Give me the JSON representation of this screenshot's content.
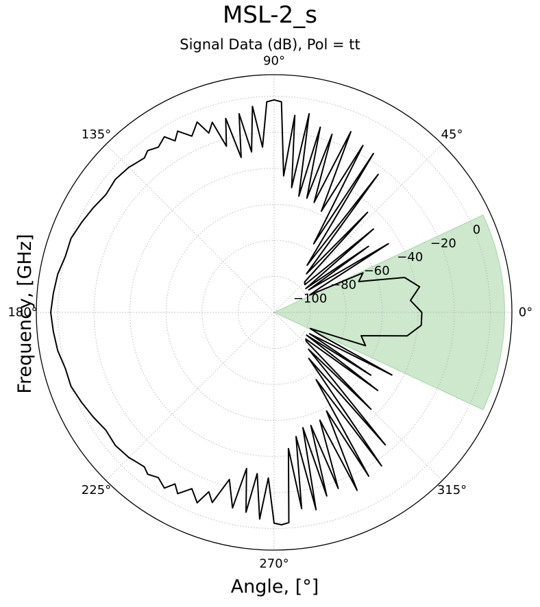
{
  "header": {
    "suptitle": "MSL-2_s",
    "subtitle": "Signal Data (dB), Pol = tt"
  },
  "chart_data": {
    "type": "polar-line",
    "title": "Signal Data (dB), Pol = tt",
    "xlabel": "Angle, [$^{\\circ}$]",
    "xlabel_display": "Angle, [°]",
    "ylabel": "Frequency, [GHz]",
    "ylabel_display": "Frequency, [GHz]",
    "angle_ticks": [
      0,
      45,
      90,
      135,
      180,
      225,
      270,
      315
    ],
    "angle_tick_labels": [
      "0°",
      "45°",
      "90°",
      "135°",
      "180°",
      "225°",
      "270°",
      "315°"
    ],
    "radial_ticks": [
      -100,
      -80,
      -60,
      -40,
      -20,
      0
    ],
    "radial_tick_labels": [
      "−100",
      "−80",
      "−60",
      "−40",
      "−20",
      "0"
    ],
    "rlim": [
      -120,
      12
    ],
    "radial_label_angle_deg": 22.5,
    "grid": true,
    "highlight_sector": {
      "theta_start_deg": -25,
      "theta_end_deg": 25,
      "r_max_dB": 8,
      "color": "#2ca02c",
      "alpha": 0.24
    },
    "series": [
      {
        "color": "#000000",
        "theta_deg": [
          0,
          5,
          10,
          15,
          20,
          24,
          26,
          28,
          31,
          33,
          35,
          37,
          40,
          42,
          45,
          47,
          50,
          53,
          55,
          58,
          60,
          62,
          65,
          67,
          70,
          72,
          74,
          76,
          78,
          80,
          82,
          84,
          86,
          88,
          90,
          92,
          94,
          96,
          98,
          100,
          102,
          104,
          106,
          108,
          110,
          112,
          115,
          118,
          120,
          122,
          125,
          128,
          130,
          133,
          135,
          140,
          145,
          150,
          155,
          160,
          165,
          170,
          175,
          180,
          185,
          190,
          195,
          200,
          205,
          210,
          215,
          220,
          225,
          227,
          230,
          232,
          235,
          238,
          240,
          242,
          245,
          248,
          250,
          252,
          255,
          258,
          260,
          262,
          264,
          266,
          268,
          270,
          272,
          274,
          276,
          278,
          280,
          282,
          284,
          286,
          288,
          290,
          293,
          295,
          298,
          300,
          302,
          305,
          307,
          310,
          313,
          315,
          318,
          320,
          323,
          325,
          327,
          329,
          332,
          334,
          336,
          340,
          345,
          350,
          355,
          360
        ],
        "r_dB": [
          -38,
          -44,
          -38,
          -45,
          -70,
          -66,
          -98,
          -92,
          -46,
          -97,
          -56,
          -98,
          -48,
          -97,
          -96,
          -44,
          -92,
          -24,
          -88,
          -16,
          -76,
          -15,
          -58,
          -11,
          -55,
          -16,
          -54,
          -14,
          -54,
          -8,
          -50,
          -10,
          -44,
          -3,
          -2,
          -3,
          -28,
          -5,
          -30,
          -8,
          -32,
          -9,
          -24,
          -9,
          -14,
          -6,
          -12,
          -6,
          -10,
          -5,
          -8,
          -6,
          -8,
          -7,
          -6,
          -5,
          -6,
          -4,
          -2,
          0,
          0,
          2,
          3,
          4,
          3,
          2,
          0,
          0,
          -2,
          -4,
          -6,
          -5,
          -6,
          -7,
          -8,
          -6,
          -8,
          -5,
          -10,
          -6,
          -12,
          -6,
          -14,
          -9,
          -24,
          -9,
          -32,
          -8,
          -30,
          -5,
          -28,
          -3,
          -2,
          -3,
          -44,
          -10,
          -50,
          -8,
          -54,
          -14,
          -54,
          -16,
          -55,
          -11,
          -58,
          -15,
          -76,
          -16,
          -88,
          -24,
          -92,
          -44,
          -96,
          -97,
          -48,
          -98,
          -56,
          -97,
          -46,
          -92,
          -98,
          -66,
          -70,
          -45,
          -38,
          -38
        ]
      }
    ]
  }
}
